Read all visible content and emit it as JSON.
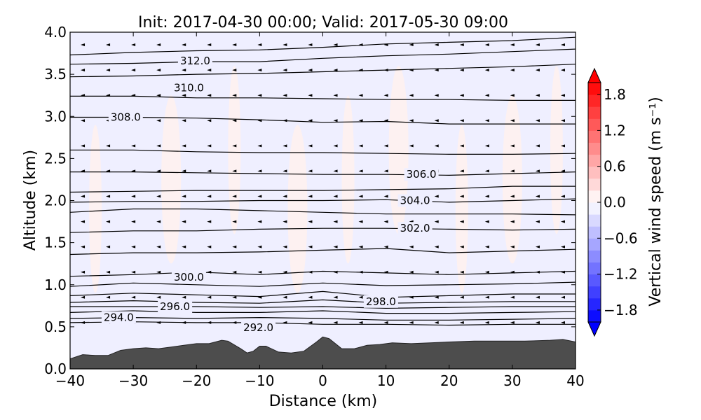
{
  "chart_data": {
    "type": "contour",
    "title": "Init: 2017-04-30 00:00; Valid: 2017-05-30 09:00",
    "xlabel": "Distance (km)",
    "ylabel": "Altitude (km)",
    "xlim": [
      -40,
      40
    ],
    "ylim": [
      0.0,
      4.0
    ],
    "x_ticks": [
      "−40",
      "−30",
      "−20",
      "−10",
      "0",
      "10",
      "20",
      "30",
      "40"
    ],
    "y_ticks": [
      "0.0",
      "0.5",
      "1.0",
      "1.5",
      "2.0",
      "2.5",
      "3.0",
      "3.5",
      "4.0"
    ],
    "colorbar": {
      "label": "Vertical wind speed (m s⁻¹)",
      "range": [
        -2.0,
        2.0
      ],
      "ticks": [
        "−1.8",
        "−1.2",
        "−0.6",
        "0.0",
        "0.6",
        "1.2",
        "1.8"
      ],
      "colormap": "bwr",
      "extend": "both"
    },
    "contour_labels": [
      {
        "text": "312.0",
        "x": -20.2,
        "z": 3.66
      },
      {
        "text": "310.0",
        "x": -21.2,
        "z": 3.34
      },
      {
        "text": "308.0",
        "x": -31.2,
        "z": 2.99
      },
      {
        "text": "306.0",
        "x": 15.6,
        "z": 2.31
      },
      {
        "text": "304.0",
        "x": 14.6,
        "z": 2.0
      },
      {
        "text": "302.0",
        "x": 14.6,
        "z": 1.67
      },
      {
        "text": "300.0",
        "x": -21.2,
        "z": 1.09
      },
      {
        "text": "298.0",
        "x": 9.2,
        "z": 0.8
      },
      {
        "text": "296.0",
        "x": -23.4,
        "z": 0.74
      },
      {
        "text": "294.0",
        "x": -32.3,
        "z": 0.61
      },
      {
        "text": "292.0",
        "x": -10.2,
        "z": 0.49
      }
    ],
    "contour_lines": [
      {
        "level": 312,
        "points": [
          [
            -40,
            3.73
          ],
          [
            -30,
            3.76
          ],
          [
            -20,
            3.78
          ],
          [
            -10,
            3.79
          ],
          [
            0,
            3.82
          ],
          [
            10,
            3.86
          ],
          [
            20,
            3.88
          ],
          [
            30,
            3.9
          ],
          [
            40,
            3.94
          ]
        ]
      },
      {
        "level": 311,
        "points": [
          [
            -40,
            3.62
          ],
          [
            -30,
            3.63
          ],
          [
            -20,
            3.65
          ],
          [
            -10,
            3.65
          ],
          [
            0,
            3.69
          ],
          [
            10,
            3.72
          ],
          [
            20,
            3.74
          ],
          [
            30,
            3.77
          ],
          [
            40,
            3.8
          ]
        ]
      },
      {
        "level": 310,
        "points": [
          [
            -40,
            3.47
          ],
          [
            -30,
            3.48
          ],
          [
            -20,
            3.5
          ],
          [
            -10,
            3.51
          ],
          [
            0,
            3.53
          ],
          [
            10,
            3.55
          ],
          [
            20,
            3.57
          ],
          [
            30,
            3.59
          ],
          [
            40,
            3.62
          ]
        ]
      },
      {
        "level": 309,
        "points": [
          [
            -40,
            3.24
          ],
          [
            -30,
            3.24
          ],
          [
            -20,
            3.22
          ],
          [
            -10,
            3.22
          ],
          [
            0,
            3.21
          ],
          [
            10,
            3.2
          ],
          [
            20,
            3.2
          ],
          [
            30,
            3.19
          ],
          [
            40,
            3.19
          ]
        ]
      },
      {
        "level": 308,
        "points": [
          [
            -40,
            2.99
          ],
          [
            -30,
            2.99
          ],
          [
            -20,
            2.98
          ],
          [
            -10,
            2.96
          ],
          [
            0,
            2.93
          ],
          [
            10,
            2.94
          ],
          [
            20,
            2.91
          ],
          [
            30,
            2.91
          ],
          [
            40,
            2.91
          ]
        ]
      },
      {
        "level": 307,
        "points": [
          [
            -40,
            2.6
          ],
          [
            -30,
            2.6
          ],
          [
            -20,
            2.58
          ],
          [
            -10,
            2.57
          ],
          [
            0,
            2.57
          ],
          [
            10,
            2.56
          ],
          [
            20,
            2.55
          ],
          [
            30,
            2.55
          ],
          [
            40,
            2.56
          ]
        ]
      },
      {
        "level": 306,
        "points": [
          [
            -40,
            2.34
          ],
          [
            -30,
            2.34
          ],
          [
            -20,
            2.33
          ],
          [
            -10,
            2.32
          ],
          [
            0,
            2.31
          ],
          [
            10,
            2.31
          ],
          [
            20,
            2.3
          ],
          [
            30,
            2.32
          ],
          [
            40,
            2.34
          ]
        ]
      },
      {
        "level": 305,
        "points": [
          [
            -40,
            2.1
          ],
          [
            -30,
            2.11
          ],
          [
            -20,
            2.12
          ],
          [
            -10,
            2.12
          ],
          [
            0,
            2.12
          ],
          [
            10,
            2.13
          ],
          [
            20,
            2.14
          ],
          [
            30,
            2.17
          ],
          [
            40,
            2.17
          ]
        ]
      },
      {
        "level": 304,
        "points": [
          [
            -40,
            1.98
          ],
          [
            -30,
            1.99
          ],
          [
            -20,
            1.99
          ],
          [
            -10,
            2.0
          ],
          [
            0,
            2.0
          ],
          [
            10,
            2.01
          ],
          [
            20,
            1.98
          ],
          [
            30,
            2.0
          ],
          [
            40,
            2.02
          ]
        ]
      },
      {
        "level": 303,
        "points": [
          [
            -40,
            1.86
          ],
          [
            -30,
            1.9
          ],
          [
            -20,
            1.9
          ],
          [
            -10,
            1.88
          ],
          [
            0,
            1.86
          ],
          [
            10,
            1.84
          ],
          [
            20,
            1.84
          ],
          [
            30,
            1.84
          ],
          [
            40,
            1.83
          ]
        ]
      },
      {
        "level": 302,
        "points": [
          [
            -40,
            1.62
          ],
          [
            -30,
            1.64
          ],
          [
            -20,
            1.64
          ],
          [
            -10,
            1.66
          ],
          [
            0,
            1.67
          ],
          [
            10,
            1.67
          ],
          [
            20,
            1.66
          ],
          [
            30,
            1.65
          ],
          [
            40,
            1.66
          ]
        ]
      },
      {
        "level": 301,
        "points": [
          [
            -40,
            1.36
          ],
          [
            -30,
            1.38
          ],
          [
            -20,
            1.38
          ],
          [
            -10,
            1.39
          ],
          [
            0,
            1.41
          ],
          [
            10,
            1.43
          ],
          [
            20,
            1.38
          ],
          [
            30,
            1.4
          ],
          [
            40,
            1.42
          ]
        ]
      },
      {
        "level": 300,
        "points": [
          [
            -40,
            1.1
          ],
          [
            -30,
            1.12
          ],
          [
            -20,
            1.15
          ],
          [
            -10,
            1.12
          ],
          [
            0,
            1.16
          ],
          [
            10,
            1.14
          ],
          [
            20,
            1.12
          ],
          [
            30,
            1.14
          ],
          [
            40,
            1.16
          ]
        ]
      },
      {
        "level": 299,
        "points": [
          [
            -40,
            0.98
          ],
          [
            -30,
            1.02
          ],
          [
            -20,
            1.0
          ],
          [
            -10,
            0.98
          ],
          [
            0,
            1.02
          ],
          [
            10,
            0.99
          ],
          [
            20,
            1.0
          ],
          [
            30,
            1.01
          ],
          [
            40,
            1.03
          ]
        ]
      },
      {
        "level": 298,
        "points": [
          [
            -40,
            0.87
          ],
          [
            -30,
            0.9
          ],
          [
            -20,
            0.88
          ],
          [
            -10,
            0.86
          ],
          [
            0,
            0.92
          ],
          [
            10,
            0.85
          ],
          [
            20,
            0.87
          ],
          [
            30,
            0.89
          ],
          [
            40,
            0.89
          ]
        ]
      },
      {
        "level": 297,
        "points": [
          [
            -40,
            0.79
          ],
          [
            -30,
            0.81
          ],
          [
            -20,
            0.79
          ],
          [
            -10,
            0.78
          ],
          [
            0,
            0.82
          ],
          [
            10,
            0.78
          ],
          [
            20,
            0.79
          ],
          [
            30,
            0.8
          ],
          [
            40,
            0.8
          ]
        ]
      },
      {
        "level": 296,
        "points": [
          [
            -40,
            0.74
          ],
          [
            -30,
            0.74
          ],
          [
            -20,
            0.74
          ],
          [
            -10,
            0.73
          ],
          [
            0,
            0.74
          ],
          [
            10,
            0.72
          ],
          [
            20,
            0.73
          ],
          [
            30,
            0.74
          ],
          [
            40,
            0.74
          ]
        ]
      },
      {
        "level": 295,
        "points": [
          [
            -40,
            0.67
          ],
          [
            -30,
            0.69
          ],
          [
            -20,
            0.67
          ],
          [
            -10,
            0.67
          ],
          [
            0,
            0.69
          ],
          [
            10,
            0.66
          ],
          [
            20,
            0.66
          ],
          [
            30,
            0.67
          ],
          [
            40,
            0.68
          ]
        ]
      },
      {
        "level": 294,
        "points": [
          [
            -40,
            0.6
          ],
          [
            -30,
            0.61
          ],
          [
            -20,
            0.6
          ],
          [
            -10,
            0.61
          ],
          [
            0,
            0.6
          ],
          [
            10,
            0.58
          ],
          [
            20,
            0.58
          ],
          [
            30,
            0.59
          ],
          [
            40,
            0.6
          ]
        ]
      },
      {
        "level": 293,
        "points": [
          [
            -40,
            0.55
          ],
          [
            -30,
            0.56
          ],
          [
            -20,
            0.55
          ],
          [
            -10,
            0.55
          ],
          [
            0,
            0.53
          ],
          [
            10,
            0.53
          ],
          [
            20,
            0.52
          ],
          [
            30,
            0.53
          ],
          [
            40,
            0.53
          ]
        ]
      }
    ],
    "terrain": [
      [
        -40,
        0.12
      ],
      [
        -38,
        0.17
      ],
      [
        -36,
        0.16
      ],
      [
        -34,
        0.16
      ],
      [
        -32,
        0.22
      ],
      [
        -30,
        0.24
      ],
      [
        -28,
        0.25
      ],
      [
        -26,
        0.24
      ],
      [
        -24,
        0.26
      ],
      [
        -22,
        0.28
      ],
      [
        -20,
        0.3
      ],
      [
        -18,
        0.3
      ],
      [
        -16,
        0.34
      ],
      [
        -15,
        0.33
      ],
      [
        -13,
        0.24
      ],
      [
        -12,
        0.19
      ],
      [
        -11,
        0.21
      ],
      [
        -10,
        0.27
      ],
      [
        -9,
        0.27
      ],
      [
        -7,
        0.2
      ],
      [
        -5,
        0.19
      ],
      [
        -3,
        0.21
      ],
      [
        -1,
        0.32
      ],
      [
        0,
        0.38
      ],
      [
        1,
        0.36
      ],
      [
        2,
        0.3
      ],
      [
        3,
        0.24
      ],
      [
        5,
        0.24
      ],
      [
        7,
        0.28
      ],
      [
        9,
        0.29
      ],
      [
        11,
        0.31
      ],
      [
        14,
        0.3
      ],
      [
        17,
        0.31
      ],
      [
        20,
        0.32
      ],
      [
        24,
        0.33
      ],
      [
        28,
        0.33
      ],
      [
        32,
        0.33
      ],
      [
        36,
        0.34
      ],
      [
        38,
        0.35
      ],
      [
        40,
        0.32
      ]
    ],
    "grid": false
  }
}
